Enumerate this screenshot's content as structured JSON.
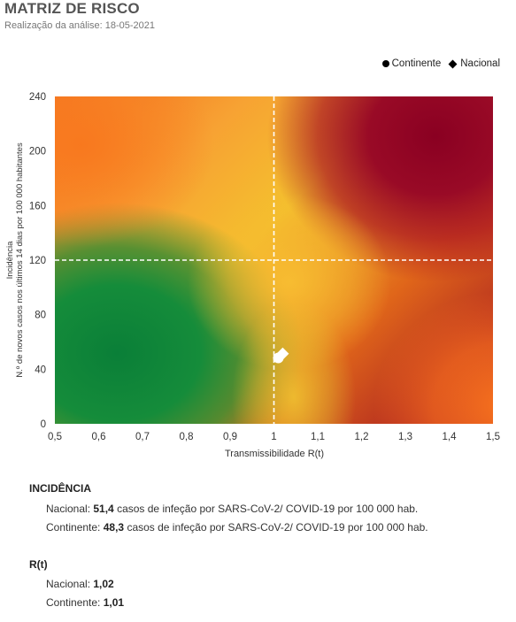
{
  "header": {
    "title": "MATRIZ DE RISCO",
    "subtitle": "Realização da análise: 18-05-2021"
  },
  "legend": [
    {
      "label": "Continente",
      "marker": "circle"
    },
    {
      "label": "Nacional",
      "marker": "diamond"
    }
  ],
  "chart_data": {
    "type": "scatter",
    "xlabel": "Transmissibilidade R(t)",
    "ylabel_lines": [
      "Incidência",
      "N.º de novos casos nos últimos 14 dias por 100 000 habitantes"
    ],
    "xlim": [
      0.5,
      1.5
    ],
    "ylim": [
      0,
      240
    ],
    "x_ticks": [
      "0,5",
      "0,6",
      "0,7",
      "0,8",
      "0,9",
      "1",
      "1,1",
      "1,2",
      "1,3",
      "1,4",
      "1,5"
    ],
    "y_ticks": [
      "0",
      "40",
      "80",
      "120",
      "160",
      "200",
      "240"
    ],
    "thresholds": {
      "x": 1,
      "y": 120
    },
    "background": "risk gradient: green (low) to dark red (high)",
    "colors": {
      "green": "#0a8a3c",
      "yellow": "#f4c02e",
      "orange": "#f46b1e",
      "dark_red": "#8b0022"
    },
    "series": [
      {
        "name": "Continente",
        "marker": "circle",
        "x": 1.01,
        "y": 48.3
      },
      {
        "name": "Nacional",
        "marker": "diamond",
        "x": 1.02,
        "y": 51.4
      }
    ]
  },
  "incidencia": {
    "heading": "INCIDÊNCIA",
    "nacional": {
      "label": "Nacional:",
      "value": "51,4",
      "text": "casos de infeção por SARS-CoV-2/ COVID-19 por 100 000 hab."
    },
    "continente": {
      "label": "Continente:",
      "value": "48,3",
      "text": "casos de infeção por SARS-CoV-2/ COVID-19 por 100 000 hab."
    }
  },
  "rt": {
    "heading": "R(t)",
    "nacional": {
      "label": "Nacional:",
      "value": "1,02"
    },
    "continente": {
      "label": "Continente:",
      "value": "1,01"
    }
  }
}
